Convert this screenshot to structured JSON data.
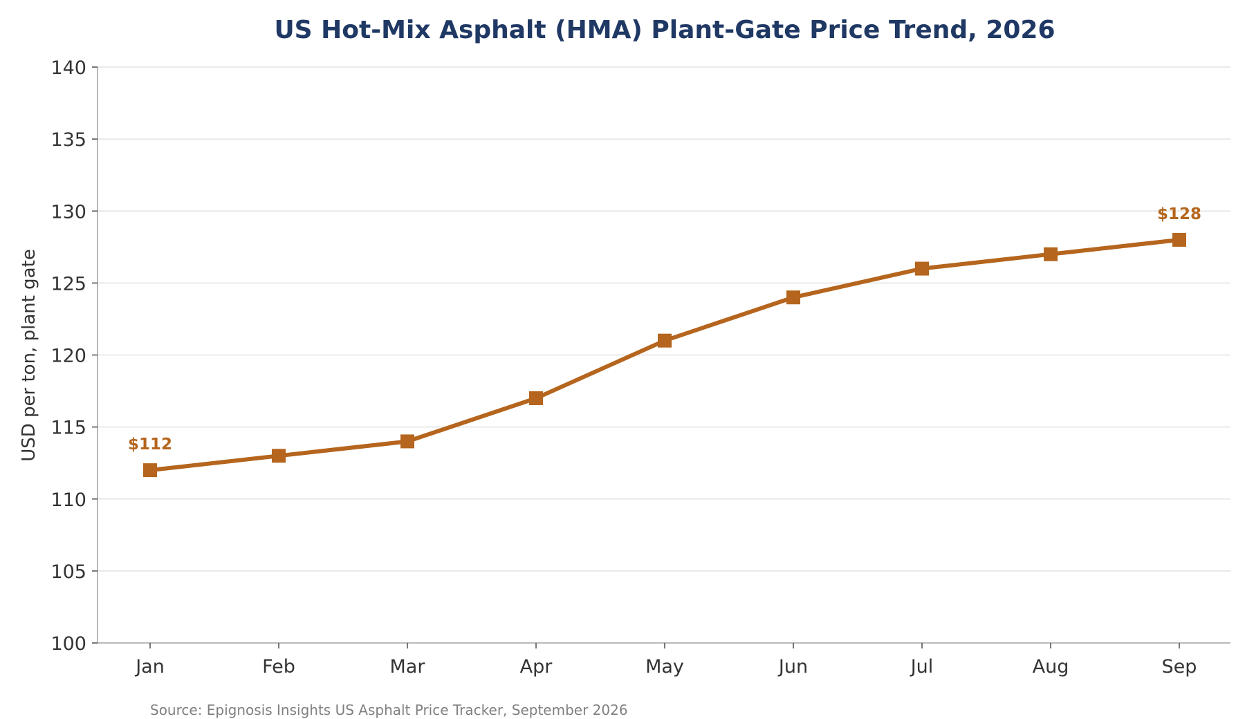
{
  "chart_data": {
    "type": "line",
    "title": "US Hot-Mix Asphalt (HMA) Plant-Gate Price Trend, 2026",
    "xlabel": "",
    "ylabel": "USD per ton, plant gate",
    "categories": [
      "Jan",
      "Feb",
      "Mar",
      "Apr",
      "May",
      "Jun",
      "Jul",
      "Aug",
      "Sep"
    ],
    "series": [
      {
        "values": [
          112,
          113,
          114,
          117,
          121,
          124,
          126,
          127,
          128
        ],
        "color": "#b5651d",
        "marker": "square"
      }
    ],
    "ylim": [
      100,
      140
    ],
    "yticks": [
      100,
      105,
      110,
      115,
      120,
      125,
      130,
      135,
      140
    ],
    "grid": "horizontal",
    "legend": "none",
    "annotations": [
      {
        "category": "Jan",
        "value": 112,
        "text": "$112"
      },
      {
        "category": "Sep",
        "value": 128,
        "text": "$128"
      }
    ],
    "source": "Source: Epignosis Insights US Asphalt Price Tracker, September 2026"
  },
  "colors": {
    "title": "#1f3864",
    "series": "#b5651d",
    "grid": "#e2e2e2",
    "axis": "#b0b0b0",
    "tick_text": "#333333",
    "source_text": "#808080"
  }
}
